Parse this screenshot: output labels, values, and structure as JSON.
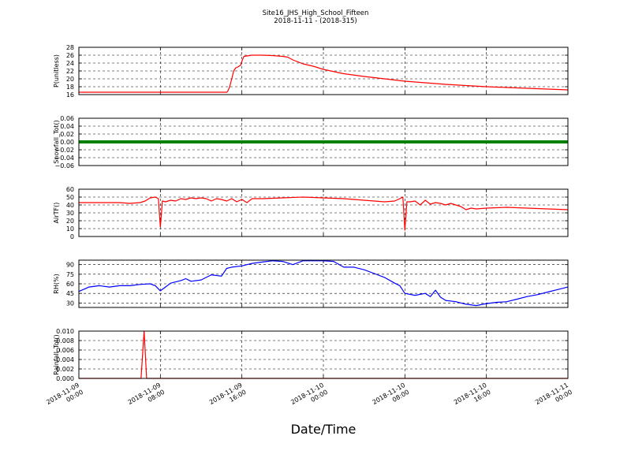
{
  "title_line1": "Site16_JHS_High_School_Fifteen",
  "title_line2": "2018-11-11 - (2018-315)",
  "xlabel": "Date/Time",
  "chart_data": [
    {
      "type": "line",
      "ylabel": "P(unitless)",
      "ylim": [
        16,
        28
      ],
      "yticks": [
        "16",
        "18",
        "20",
        "22",
        "24",
        "26",
        "28"
      ],
      "color": "#ff0000",
      "grid": true,
      "x": [
        0,
        14.5,
        14.6,
        14.8,
        15.0,
        15.2,
        15.4,
        15.6,
        15.9,
        16.0,
        16.2,
        17,
        18,
        19,
        20,
        20.5,
        21,
        22,
        23,
        24,
        26,
        28,
        30,
        32,
        34,
        36,
        38,
        40,
        42,
        44,
        46,
        48
      ],
      "y": [
        16.6,
        16.6,
        16.8,
        18.0,
        20.0,
        22.0,
        22.8,
        23.0,
        23.5,
        24.5,
        25.7,
        26.0,
        26.0,
        25.9,
        25.7,
        25.5,
        24.8,
        23.8,
        23.2,
        22.4,
        21.3,
        20.6,
        20.0,
        19.4,
        19.0,
        18.6,
        18.3,
        18.0,
        17.8,
        17.6,
        17.4,
        17.2
      ]
    },
    {
      "type": "line",
      "ylabel": "Snowfall_Tot()",
      "ylim": [
        -0.06,
        0.06
      ],
      "yticks": [
        "−0.06",
        "−0.04",
        "−0.02",
        "0.00",
        "0.02",
        "0.04",
        "0.06"
      ],
      "color": "#008000",
      "grid": true,
      "x": [
        0,
        48
      ],
      "y": [
        0,
        0
      ]
    },
    {
      "type": "line",
      "ylabel": "AirTF()",
      "ylim": [
        0,
        60
      ],
      "yticks": [
        "0",
        "10",
        "20",
        "30",
        "40",
        "50",
        "60"
      ],
      "color": "#ff0000",
      "grid": true,
      "x": [
        0,
        2,
        4,
        5,
        6,
        6.5,
        7,
        7.5,
        7.8,
        8.0,
        8.2,
        8.5,
        9,
        9.5,
        10,
        10.5,
        11,
        11.5,
        12,
        12.5,
        13,
        13.5,
        14,
        14.5,
        15,
        15.5,
        16,
        16.5,
        17,
        18,
        20,
        22,
        24,
        26,
        28,
        30,
        31,
        31.5,
        31.8,
        32.0,
        32.2,
        32.5,
        33,
        33.5,
        34,
        34.5,
        35,
        35.5,
        36,
        36.5,
        37,
        37.5,
        38,
        38.5,
        39,
        40,
        42,
        44,
        46,
        48
      ],
      "y": [
        43,
        43,
        43,
        42,
        43,
        45,
        49,
        50,
        48,
        12,
        45,
        44,
        46,
        45,
        48,
        47,
        49,
        48,
        49,
        48,
        45,
        48,
        47,
        45,
        48,
        44,
        47,
        43,
        48,
        48,
        49,
        50,
        49,
        48,
        46,
        44,
        45,
        48,
        50,
        8,
        44,
        44,
        45,
        40,
        46,
        41,
        43,
        42,
        40,
        42,
        40,
        38,
        34,
        36,
        35,
        36,
        37,
        36,
        35,
        34
      ]
    },
    {
      "type": "line",
      "ylabel": "RH(%)",
      "ylim": [
        23,
        97
      ],
      "yticks": [
        "30",
        "45",
        "60",
        "75",
        "90"
      ],
      "color": "#0000ff",
      "grid": true,
      "x": [
        0,
        1,
        2,
        3,
        4,
        5,
        6,
        7,
        7.5,
        8,
        8.5,
        9,
        10,
        10.5,
        11,
        12,
        13,
        14,
        14.5,
        15,
        16,
        17,
        18,
        19,
        20,
        21,
        22,
        23,
        24,
        25,
        26,
        27,
        28,
        29,
        30,
        31,
        31.5,
        32,
        33,
        34,
        34.5,
        35,
        35.5,
        36,
        37,
        38,
        39,
        40,
        41,
        42,
        43,
        44,
        45,
        46,
        47,
        48
      ],
      "y": [
        48,
        55,
        57,
        55,
        57,
        57,
        59,
        60,
        57,
        49,
        55,
        61,
        65,
        68,
        64,
        66,
        74,
        72,
        84,
        86,
        88,
        92,
        94,
        96,
        95,
        90,
        96,
        96,
        96,
        95,
        86,
        86,
        82,
        76,
        70,
        61,
        57,
        45,
        42,
        45,
        40,
        50,
        39,
        34,
        32,
        28,
        26,
        29,
        31,
        32,
        36,
        40,
        43,
        47,
        51,
        55
      ]
    },
    {
      "type": "line",
      "ylabel": "Rainfall_Tot()",
      "ylim": [
        0,
        0.01
      ],
      "yticks": [
        "0.000",
        "0.002",
        "0.004",
        "0.006",
        "0.008",
        "0.010"
      ],
      "color": "#ff0000",
      "grid": true,
      "x": [
        0,
        6.1,
        6.4,
        6.65,
        48
      ],
      "y": [
        0,
        0,
        0.01,
        0,
        0
      ],
      "xticks": [
        {
          "l1": "2018-11-09",
          "l2": "00:00"
        },
        {
          "l1": "2018-11-09",
          "l2": "08:00"
        },
        {
          "l1": "2018-11-09",
          "l2": "16:00"
        },
        {
          "l1": "2018-11-10",
          "l2": "00:00"
        },
        {
          "l1": "2018-11-10",
          "l2": "08:00"
        },
        {
          "l1": "2018-11-10",
          "l2": "16:00"
        },
        {
          "l1": "2018-11-11",
          "l2": "00:00"
        }
      ]
    }
  ]
}
